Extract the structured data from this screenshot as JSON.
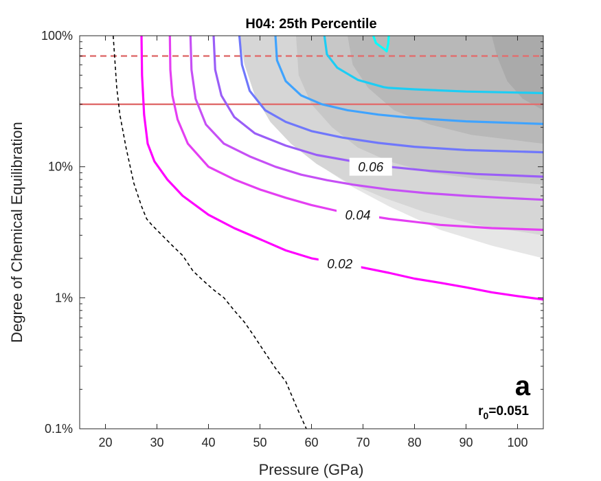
{
  "chart_data": {
    "type": "line",
    "title": "H04: 25th Percentile",
    "xlabel": "Pressure (GPa)",
    "ylabel": "Degree of Chemical Equilibration",
    "xlim": [
      15,
      105
    ],
    "ylim": [
      0.1,
      100
    ],
    "y_scale": "log",
    "x_ticks": [
      20,
      30,
      40,
      50,
      60,
      70,
      80,
      90,
      100
    ],
    "x_tick_labels": [
      "20",
      "30",
      "40",
      "50",
      "60",
      "70",
      "80",
      "90",
      "100"
    ],
    "y_ticks": [
      0.1,
      1,
      10,
      100
    ],
    "y_tick_labels": [
      "0.1%",
      "1%",
      "10%",
      "100%"
    ],
    "grid": false,
    "panel_label": "a",
    "annotation": {
      "prefix": "r",
      "subscript": "0",
      "suffix": "=0.051"
    },
    "shaded_regions": [
      {
        "color": "#e6e6e6",
        "points": [
          [
            51.5,
            100
          ],
          [
            51,
            50
          ],
          [
            53,
            25
          ],
          [
            57,
            15
          ],
          [
            62,
            10
          ],
          [
            68,
            7
          ],
          [
            75,
            5
          ],
          [
            85,
            3.3
          ],
          [
            95,
            2.5
          ],
          [
            105,
            2.0
          ],
          [
            105,
            100
          ]
        ]
      },
      {
        "color": "#d6d6d6",
        "points": [
          [
            46,
            100
          ],
          [
            47,
            60
          ],
          [
            49,
            35
          ],
          [
            52,
            22
          ],
          [
            56,
            15
          ],
          [
            61,
            10.5
          ],
          [
            67,
            7.6
          ],
          [
            74,
            5.8
          ],
          [
            82,
            4.5
          ],
          [
            92,
            3.6
          ],
          [
            105,
            3.0
          ],
          [
            105,
            100
          ]
        ]
      },
      {
        "color": "#c7c7c7",
        "points": [
          [
            57,
            100
          ],
          [
            57.5,
            50
          ],
          [
            60,
            30
          ],
          [
            64,
            20
          ],
          [
            69,
            14
          ],
          [
            75,
            11
          ],
          [
            83,
            9
          ],
          [
            93,
            8
          ],
          [
            105,
            7.3
          ],
          [
            105,
            100
          ]
        ]
      },
      {
        "color": "#b8b8b8",
        "points": [
          [
            67,
            100
          ],
          [
            68,
            60
          ],
          [
            71,
            40
          ],
          [
            76,
            27
          ],
          [
            83,
            21
          ],
          [
            91,
            17.5
          ],
          [
            105,
            15
          ],
          [
            105,
            100
          ]
        ]
      },
      {
        "color": "#aaaaaa",
        "points": [
          [
            95,
            100
          ],
          [
            96,
            70
          ],
          [
            98,
            45
          ],
          [
            101,
            33
          ],
          [
            105,
            27
          ],
          [
            105,
            100
          ]
        ]
      }
    ],
    "horizontal_lines": [
      {
        "y": 70,
        "style": "dashed",
        "color": "#e07070"
      },
      {
        "y": 30,
        "style": "solid",
        "color": "#e07070"
      }
    ],
    "boundary_line": {
      "style": "dashed",
      "color": "#000000",
      "points": [
        [
          21.5,
          100
        ],
        [
          22.2,
          40
        ],
        [
          22.8,
          25
        ],
        [
          24,
          14
        ],
        [
          25.5,
          7.5
        ],
        [
          27,
          5
        ],
        [
          28,
          4
        ],
        [
          29,
          3.6
        ],
        [
          31,
          3
        ],
        [
          33,
          2.5
        ],
        [
          35,
          2.1
        ],
        [
          37,
          1.6
        ],
        [
          39,
          1.35
        ],
        [
          41,
          1.15
        ],
        [
          43,
          1.0
        ],
        [
          45,
          0.8
        ],
        [
          47,
          0.65
        ],
        [
          49,
          0.5
        ],
        [
          51,
          0.38
        ],
        [
          53,
          0.29
        ],
        [
          55,
          0.23
        ],
        [
          57,
          0.15
        ],
        [
          59,
          0.1
        ]
      ]
    },
    "series": [
      {
        "color": "#ff00ff",
        "points": [
          [
            27,
            100
          ],
          [
            27.1,
            50
          ],
          [
            27.5,
            25
          ],
          [
            28.2,
            15
          ],
          [
            29.5,
            11
          ],
          [
            32,
            8
          ],
          [
            35,
            6
          ],
          [
            40,
            4.3
          ],
          [
            45,
            3.4
          ],
          [
            50,
            2.8
          ],
          [
            55,
            2.3
          ],
          [
            60,
            2.0
          ],
          [
            65,
            1.85
          ],
          [
            70,
            1.7
          ],
          [
            75,
            1.55
          ],
          [
            80,
            1.4
          ],
          [
            85,
            1.3
          ],
          [
            90,
            1.2
          ],
          [
            95,
            1.1
          ],
          [
            100,
            1.03
          ],
          [
            105,
            0.97
          ]
        ]
      },
      {
        "color": "#e43ff2",
        "points": [
          [
            32.5,
            100
          ],
          [
            32.6,
            55
          ],
          [
            33,
            35
          ],
          [
            34,
            23
          ],
          [
            36,
            15
          ],
          [
            40,
            10
          ],
          [
            45,
            8
          ],
          [
            50,
            6.7
          ],
          [
            55,
            5.8
          ],
          [
            60,
            5.1
          ],
          [
            65,
            4.6
          ],
          [
            70,
            4.3
          ],
          [
            75,
            4.0
          ],
          [
            80,
            3.8
          ],
          [
            85,
            3.6
          ],
          [
            90,
            3.5
          ],
          [
            95,
            3.4
          ],
          [
            100,
            3.35
          ],
          [
            105,
            3.3
          ]
        ]
      },
      {
        "color": "#c650f5",
        "points": [
          [
            36.5,
            100
          ],
          [
            36.7,
            55
          ],
          [
            37.5,
            33
          ],
          [
            39.5,
            21
          ],
          [
            43,
            15
          ],
          [
            48,
            12
          ],
          [
            53,
            10
          ],
          [
            58,
            8.7
          ],
          [
            63,
            7.9
          ],
          [
            68,
            7.3
          ],
          [
            75,
            6.7
          ],
          [
            82,
            6.3
          ],
          [
            90,
            6.0
          ],
          [
            97,
            5.8
          ],
          [
            105,
            5.6
          ]
        ]
      },
      {
        "color": "#9a5ef7",
        "points": [
          [
            41,
            100
          ],
          [
            41.3,
            55
          ],
          [
            42.5,
            35
          ],
          [
            45,
            24
          ],
          [
            49,
            18
          ],
          [
            55,
            14.5
          ],
          [
            61,
            12.3
          ],
          [
            68,
            11
          ],
          [
            75,
            10
          ],
          [
            83,
            9.3
          ],
          [
            92,
            8.8
          ],
          [
            105,
            8.4
          ]
        ]
      },
      {
        "color": "#6f77fb",
        "points": [
          [
            46,
            100
          ],
          [
            46.5,
            60
          ],
          [
            48,
            38
          ],
          [
            51,
            27
          ],
          [
            55,
            22
          ],
          [
            60,
            18.7
          ],
          [
            66,
            16.7
          ],
          [
            73,
            15.2
          ],
          [
            80,
            14.2
          ],
          [
            90,
            13.4
          ],
          [
            105,
            12.9
          ]
        ]
      },
      {
        "color": "#3fa3ff",
        "points": [
          [
            53,
            100
          ],
          [
            53.3,
            65
          ],
          [
            55,
            45
          ],
          [
            58,
            35
          ],
          [
            62,
            30
          ],
          [
            67,
            27
          ],
          [
            73,
            25
          ],
          [
            80,
            23.5
          ],
          [
            90,
            22.2
          ],
          [
            105,
            21.2
          ]
        ]
      },
      {
        "color": "#1ccdf4",
        "points": [
          [
            62.5,
            100
          ],
          [
            63,
            72
          ],
          [
            65,
            57
          ],
          [
            69,
            46
          ],
          [
            74,
            40.5
          ],
          [
            75,
            40
          ],
          [
            80,
            39
          ],
          [
            90,
            37.5
          ],
          [
            105,
            36.5
          ]
        ]
      },
      {
        "color": "#00ffff",
        "points": [
          [
            72,
            100
          ],
          [
            72.5,
            88
          ],
          [
            74.3,
            78
          ],
          [
            74.6,
            76
          ],
          [
            74.9,
            88
          ],
          [
            75,
            100
          ]
        ]
      }
    ],
    "contour_labels": [
      {
        "text": "0.02",
        "x": 65.5,
        "y": 1.83
      },
      {
        "text": "0.04",
        "x": 69,
        "y": 4.3
      },
      {
        "text": "0.06",
        "x": 71.5,
        "y": 10
      }
    ]
  }
}
